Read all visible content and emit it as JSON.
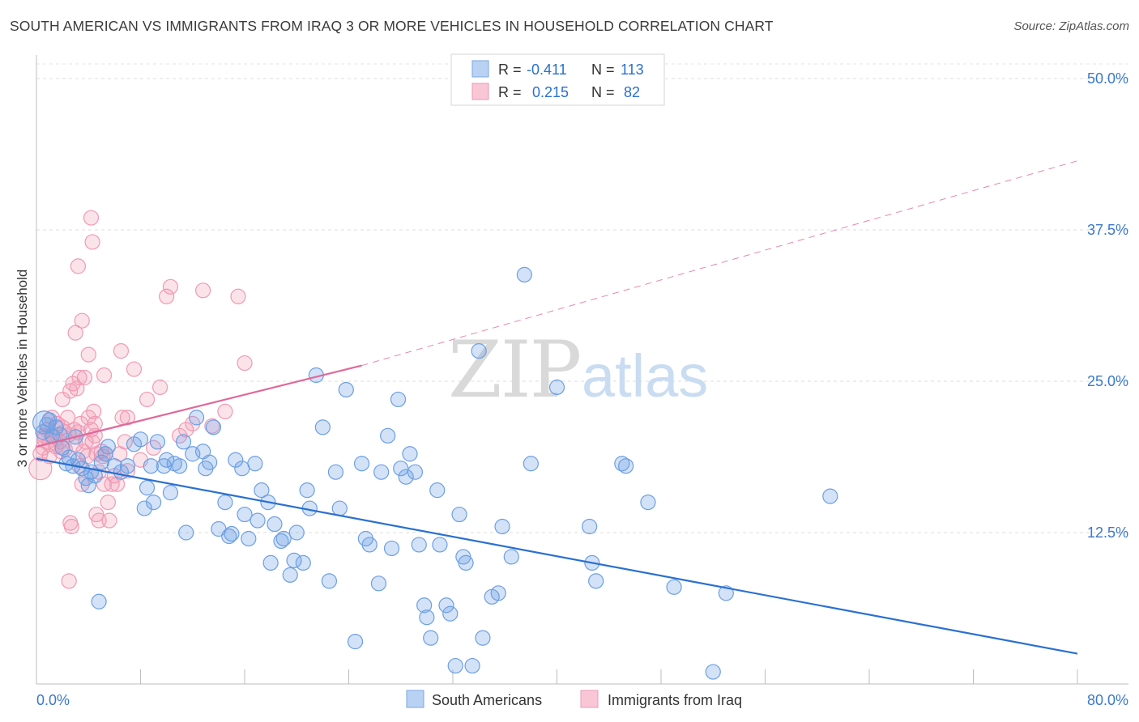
{
  "header": {
    "title": "SOUTH AMERICAN VS IMMIGRANTS FROM IRAQ 3 OR MORE VEHICLES IN HOUSEHOLD CORRELATION CHART",
    "source": "Source: ZipAtlas.com"
  },
  "watermark": {
    "zip": "ZIP",
    "atlas": "atlas"
  },
  "colors": {
    "south_american": "#6c9fe4",
    "south_american_line": "#2a70d0",
    "iraq": "#f09ab4",
    "iraq_line": "#e0699a",
    "tick_label": "#3b78cc"
  },
  "legend_top": {
    "rows": [
      {
        "r_label": "R =",
        "r_value": "-0.411",
        "n_label": "N =",
        "n_value": "113"
      },
      {
        "r_label": "R =",
        "r_value": "0.215",
        "n_label": "N =",
        "n_value": "82"
      }
    ]
  },
  "chart_data": {
    "type": "scatter",
    "title": "SOUTH AMERICAN VS IMMIGRANTS FROM IRAQ 3 OR MORE VEHICLES IN HOUSEHOLD CORRELATION CHART",
    "ylabel": "3 or more Vehicles in Household",
    "xlim": [
      0,
      80
    ],
    "ylim": [
      0,
      50
    ],
    "x_tick_labels": [
      "0.0%",
      "80.0%"
    ],
    "y_ticks": [
      12.5,
      25.0,
      37.5,
      50.0
    ],
    "y_tick_labels": [
      "12.5%",
      "25.0%",
      "37.5%",
      "50.0%"
    ],
    "grid": true,
    "legend_placement": "bottom-center",
    "series": [
      {
        "name": "South Americans",
        "r": -0.411,
        "n": 113,
        "trend": {
          "x": [
            0,
            80
          ],
          "y": [
            18.6,
            2.5
          ],
          "style": "solid"
        },
        "points": [
          [
            0.5,
            20.8
          ],
          [
            0.8,
            21.4
          ],
          [
            1.0,
            21.8
          ],
          [
            1.2,
            20.5
          ],
          [
            1.5,
            21.2
          ],
          [
            1.8,
            20.6
          ],
          [
            2.0,
            19.5
          ],
          [
            2.3,
            18.2
          ],
          [
            2.5,
            18.7
          ],
          [
            2.8,
            18.0
          ],
          [
            3.0,
            20.4
          ],
          [
            3.2,
            18.5
          ],
          [
            3.5,
            17.8
          ],
          [
            3.8,
            17.0
          ],
          [
            4.0,
            16.4
          ],
          [
            4.2,
            17.5
          ],
          [
            4.5,
            17.2
          ],
          [
            4.8,
            6.8
          ],
          [
            5.0,
            18.3
          ],
          [
            5.3,
            19.0
          ],
          [
            5.5,
            19.6
          ],
          [
            6.0,
            18.0
          ],
          [
            6.5,
            17.5
          ],
          [
            7.0,
            18.0
          ],
          [
            7.5,
            19.8
          ],
          [
            8.0,
            20.2
          ],
          [
            8.3,
            14.5
          ],
          [
            8.5,
            16.2
          ],
          [
            8.8,
            18.0
          ],
          [
            9.0,
            15.0
          ],
          [
            9.3,
            20.0
          ],
          [
            9.8,
            18.0
          ],
          [
            10.0,
            18.5
          ],
          [
            10.3,
            15.8
          ],
          [
            10.6,
            18.2
          ],
          [
            11.0,
            18.0
          ],
          [
            11.3,
            20.0
          ],
          [
            11.5,
            12.5
          ],
          [
            12.0,
            19.0
          ],
          [
            12.3,
            22.0
          ],
          [
            12.8,
            19.2
          ],
          [
            13.0,
            17.8
          ],
          [
            13.3,
            18.3
          ],
          [
            13.6,
            21.2
          ],
          [
            14.0,
            12.8
          ],
          [
            14.5,
            15.0
          ],
          [
            14.8,
            12.2
          ],
          [
            15.0,
            12.4
          ],
          [
            15.3,
            18.5
          ],
          [
            15.8,
            17.8
          ],
          [
            16.0,
            14.0
          ],
          [
            16.3,
            12.0
          ],
          [
            16.8,
            18.2
          ],
          [
            17.0,
            13.5
          ],
          [
            17.3,
            16.0
          ],
          [
            17.8,
            15.0
          ],
          [
            18.0,
            10.0
          ],
          [
            18.3,
            13.2
          ],
          [
            18.8,
            11.8
          ],
          [
            19.0,
            12.0
          ],
          [
            19.5,
            9.0
          ],
          [
            19.8,
            10.2
          ],
          [
            20.0,
            12.5
          ],
          [
            20.5,
            10.0
          ],
          [
            20.8,
            16.0
          ],
          [
            21.0,
            14.5
          ],
          [
            21.5,
            25.5
          ],
          [
            22.0,
            21.2
          ],
          [
            22.5,
            8.5
          ],
          [
            23.0,
            17.5
          ],
          [
            23.3,
            14.5
          ],
          [
            23.8,
            24.3
          ],
          [
            24.5,
            3.5
          ],
          [
            25.0,
            18.2
          ],
          [
            25.3,
            12.0
          ],
          [
            25.6,
            11.5
          ],
          [
            26.3,
            8.3
          ],
          [
            26.5,
            17.5
          ],
          [
            27.0,
            20.5
          ],
          [
            27.3,
            11.2
          ],
          [
            27.8,
            23.5
          ],
          [
            28.0,
            17.8
          ],
          [
            28.4,
            17.1
          ],
          [
            28.7,
            19.0
          ],
          [
            29.1,
            17.5
          ],
          [
            29.4,
            11.5
          ],
          [
            29.8,
            6.5
          ],
          [
            30.0,
            5.5
          ],
          [
            30.3,
            3.8
          ],
          [
            30.8,
            16.0
          ],
          [
            31.0,
            11.5
          ],
          [
            31.5,
            6.5
          ],
          [
            31.8,
            5.8
          ],
          [
            32.2,
            1.5
          ],
          [
            32.5,
            14.0
          ],
          [
            32.8,
            10.5
          ],
          [
            33.0,
            10.0
          ],
          [
            33.5,
            1.5
          ],
          [
            34.0,
            27.5
          ],
          [
            34.3,
            3.8
          ],
          [
            35.0,
            7.2
          ],
          [
            35.5,
            7.5
          ],
          [
            35.8,
            13.0
          ],
          [
            36.5,
            10.5
          ],
          [
            37.5,
            33.8
          ],
          [
            38.0,
            18.2
          ],
          [
            40.0,
            24.5
          ],
          [
            42.5,
            13.0
          ],
          [
            42.7,
            10.0
          ],
          [
            43.0,
            8.5
          ],
          [
            45.0,
            18.2
          ],
          [
            45.3,
            18.0
          ],
          [
            47.0,
            15.0
          ],
          [
            49.0,
            8.0
          ],
          [
            52.0,
            1.0
          ],
          [
            53.0,
            7.5
          ],
          [
            61.0,
            15.5
          ]
        ]
      },
      {
        "name": "Immigrants from Iraq",
        "r": 0.215,
        "n": 82,
        "trend": {
          "x": [
            0,
            25
          ],
          "y": [
            19.6,
            26.3
          ],
          "extended_to": [
            80,
            43.2
          ],
          "style": "solid then dashed"
        },
        "points": [
          [
            0.3,
            19.0
          ],
          [
            0.5,
            19.5
          ],
          [
            0.6,
            20.5
          ],
          [
            0.8,
            21.0
          ],
          [
            1.0,
            19.8
          ],
          [
            1.0,
            18.8
          ],
          [
            1.2,
            22.0
          ],
          [
            1.3,
            20.4
          ],
          [
            1.5,
            19.6
          ],
          [
            1.6,
            21.5
          ],
          [
            1.8,
            20.0
          ],
          [
            1.9,
            19.2
          ],
          [
            2.0,
            23.5
          ],
          [
            2.0,
            21.2
          ],
          [
            2.1,
            20.8
          ],
          [
            2.2,
            19.4
          ],
          [
            2.4,
            22.0
          ],
          [
            2.5,
            20.6
          ],
          [
            2.6,
            24.2
          ],
          [
            2.8,
            24.8
          ],
          [
            2.9,
            21.0
          ],
          [
            3.0,
            19.8
          ],
          [
            3.1,
            24.4
          ],
          [
            3.2,
            20.8
          ],
          [
            3.3,
            18.0
          ],
          [
            3.4,
            21.5
          ],
          [
            3.5,
            16.5
          ],
          [
            3.6,
            19.2
          ],
          [
            3.7,
            25.3
          ],
          [
            3.8,
            20.0
          ],
          [
            3.9,
            18.8
          ],
          [
            4.0,
            22.0
          ],
          [
            4.2,
            21.0
          ],
          [
            4.3,
            20.0
          ],
          [
            4.5,
            20.5
          ],
          [
            4.6,
            19.0
          ],
          [
            4.8,
            17.5
          ],
          [
            5.0,
            19.2
          ],
          [
            5.1,
            18.8
          ],
          [
            5.2,
            16.5
          ],
          [
            5.3,
            19.0
          ],
          [
            5.5,
            15.0
          ],
          [
            5.6,
            13.5
          ],
          [
            5.8,
            16.5
          ],
          [
            6.0,
            17.2
          ],
          [
            6.2,
            16.5
          ],
          [
            6.4,
            19.0
          ],
          [
            6.6,
            22.0
          ],
          [
            6.8,
            20.0
          ],
          [
            7.0,
            17.6
          ],
          [
            2.5,
            8.5
          ],
          [
            2.6,
            13.3
          ],
          [
            2.7,
            13.0
          ],
          [
            3.0,
            29.0
          ],
          [
            3.2,
            34.5
          ],
          [
            3.3,
            25.3
          ],
          [
            3.5,
            30.0
          ],
          [
            4.0,
            27.2
          ],
          [
            4.2,
            38.5
          ],
          [
            4.3,
            36.5
          ],
          [
            4.4,
            22.5
          ],
          [
            4.5,
            21.5
          ],
          [
            4.6,
            14.0
          ],
          [
            4.8,
            13.5
          ],
          [
            5.2,
            25.5
          ],
          [
            6.5,
            27.5
          ],
          [
            7.0,
            22.0
          ],
          [
            7.5,
            26.0
          ],
          [
            8.0,
            18.5
          ],
          [
            8.5,
            23.5
          ],
          [
            9.0,
            19.5
          ],
          [
            9.5,
            24.5
          ],
          [
            10.0,
            32.0
          ],
          [
            10.3,
            32.8
          ],
          [
            11.0,
            20.5
          ],
          [
            11.5,
            21.0
          ],
          [
            12.0,
            21.5
          ],
          [
            12.8,
            32.5
          ],
          [
            13.5,
            21.3
          ],
          [
            14.5,
            22.5
          ],
          [
            15.5,
            32.0
          ],
          [
            16.0,
            26.5
          ]
        ]
      }
    ]
  },
  "legend_bottom": {
    "items": [
      {
        "label": "South Americans"
      },
      {
        "label": "Immigrants from Iraq"
      }
    ]
  }
}
